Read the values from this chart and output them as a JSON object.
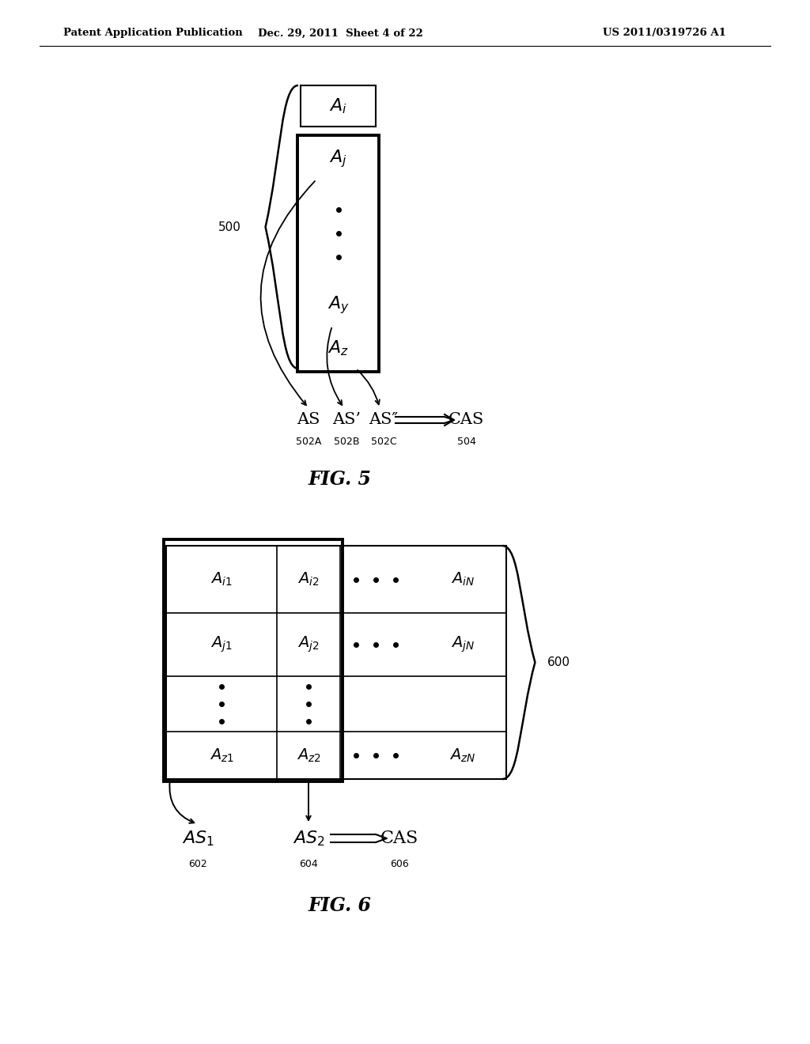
{
  "bg_color": "#ffffff",
  "header_left": "Patent Application Publication",
  "header_center": "Dec. 29, 2011  Sheet 4 of 22",
  "header_right": "US 2011/0319726 A1",
  "fig5_label": "FIG. 5",
  "fig6_label": "FIG. 6"
}
